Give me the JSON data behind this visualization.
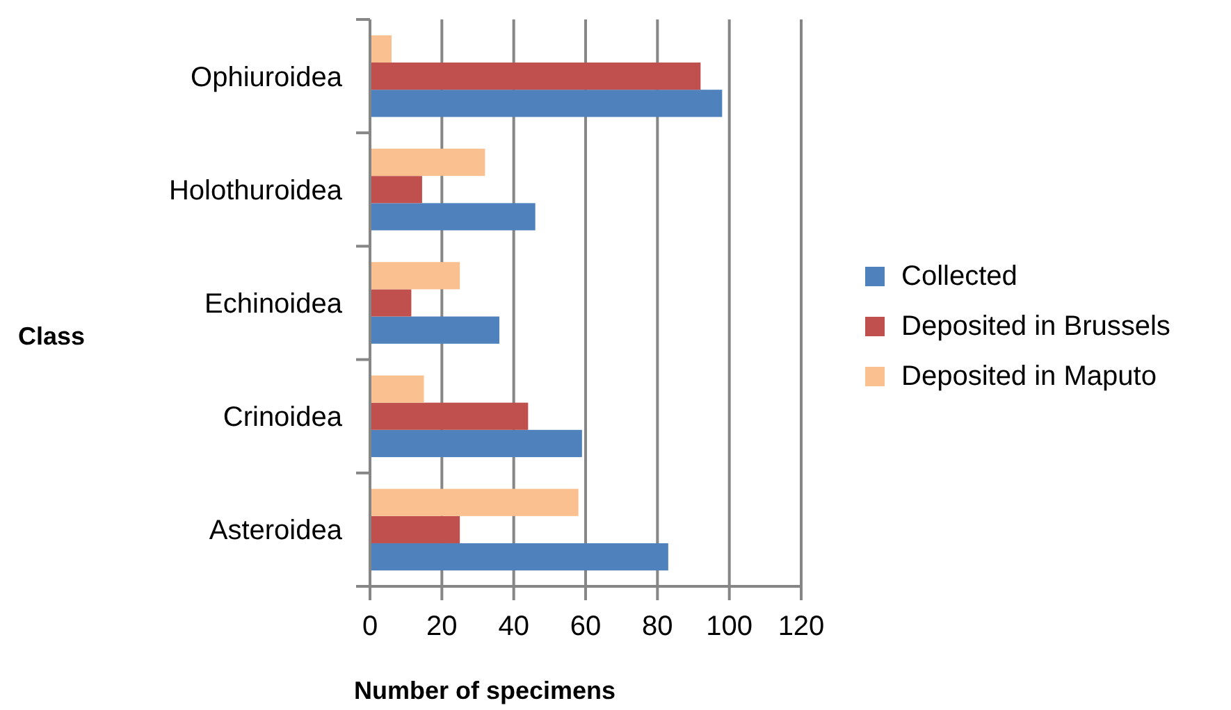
{
  "chart_data": {
    "type": "bar",
    "orientation": "horizontal",
    "xlabel": "Number of specimens",
    "ylabel": "Class",
    "categories": [
      "Ophiuroidea",
      "Holothuroidea",
      "Echinoidea",
      "Crinoidea",
      "Asteroidea"
    ],
    "series": [
      {
        "name": "Collected",
        "color": "#4f81bd",
        "values": [
          98,
          46,
          36,
          59,
          83
        ]
      },
      {
        "name": "Deposited in Brussels",
        "color": "#c0504d",
        "values": [
          92,
          14.5,
          11.5,
          44,
          25
        ]
      },
      {
        "name": "Deposited in Maputo",
        "color": "#fac090",
        "values": [
          6,
          32,
          25,
          15,
          58
        ]
      }
    ],
    "xlim": [
      0,
      120
    ],
    "xticks": [
      0,
      20,
      40,
      60,
      80,
      100,
      120
    ],
    "grid": "x",
    "legend": "right"
  }
}
